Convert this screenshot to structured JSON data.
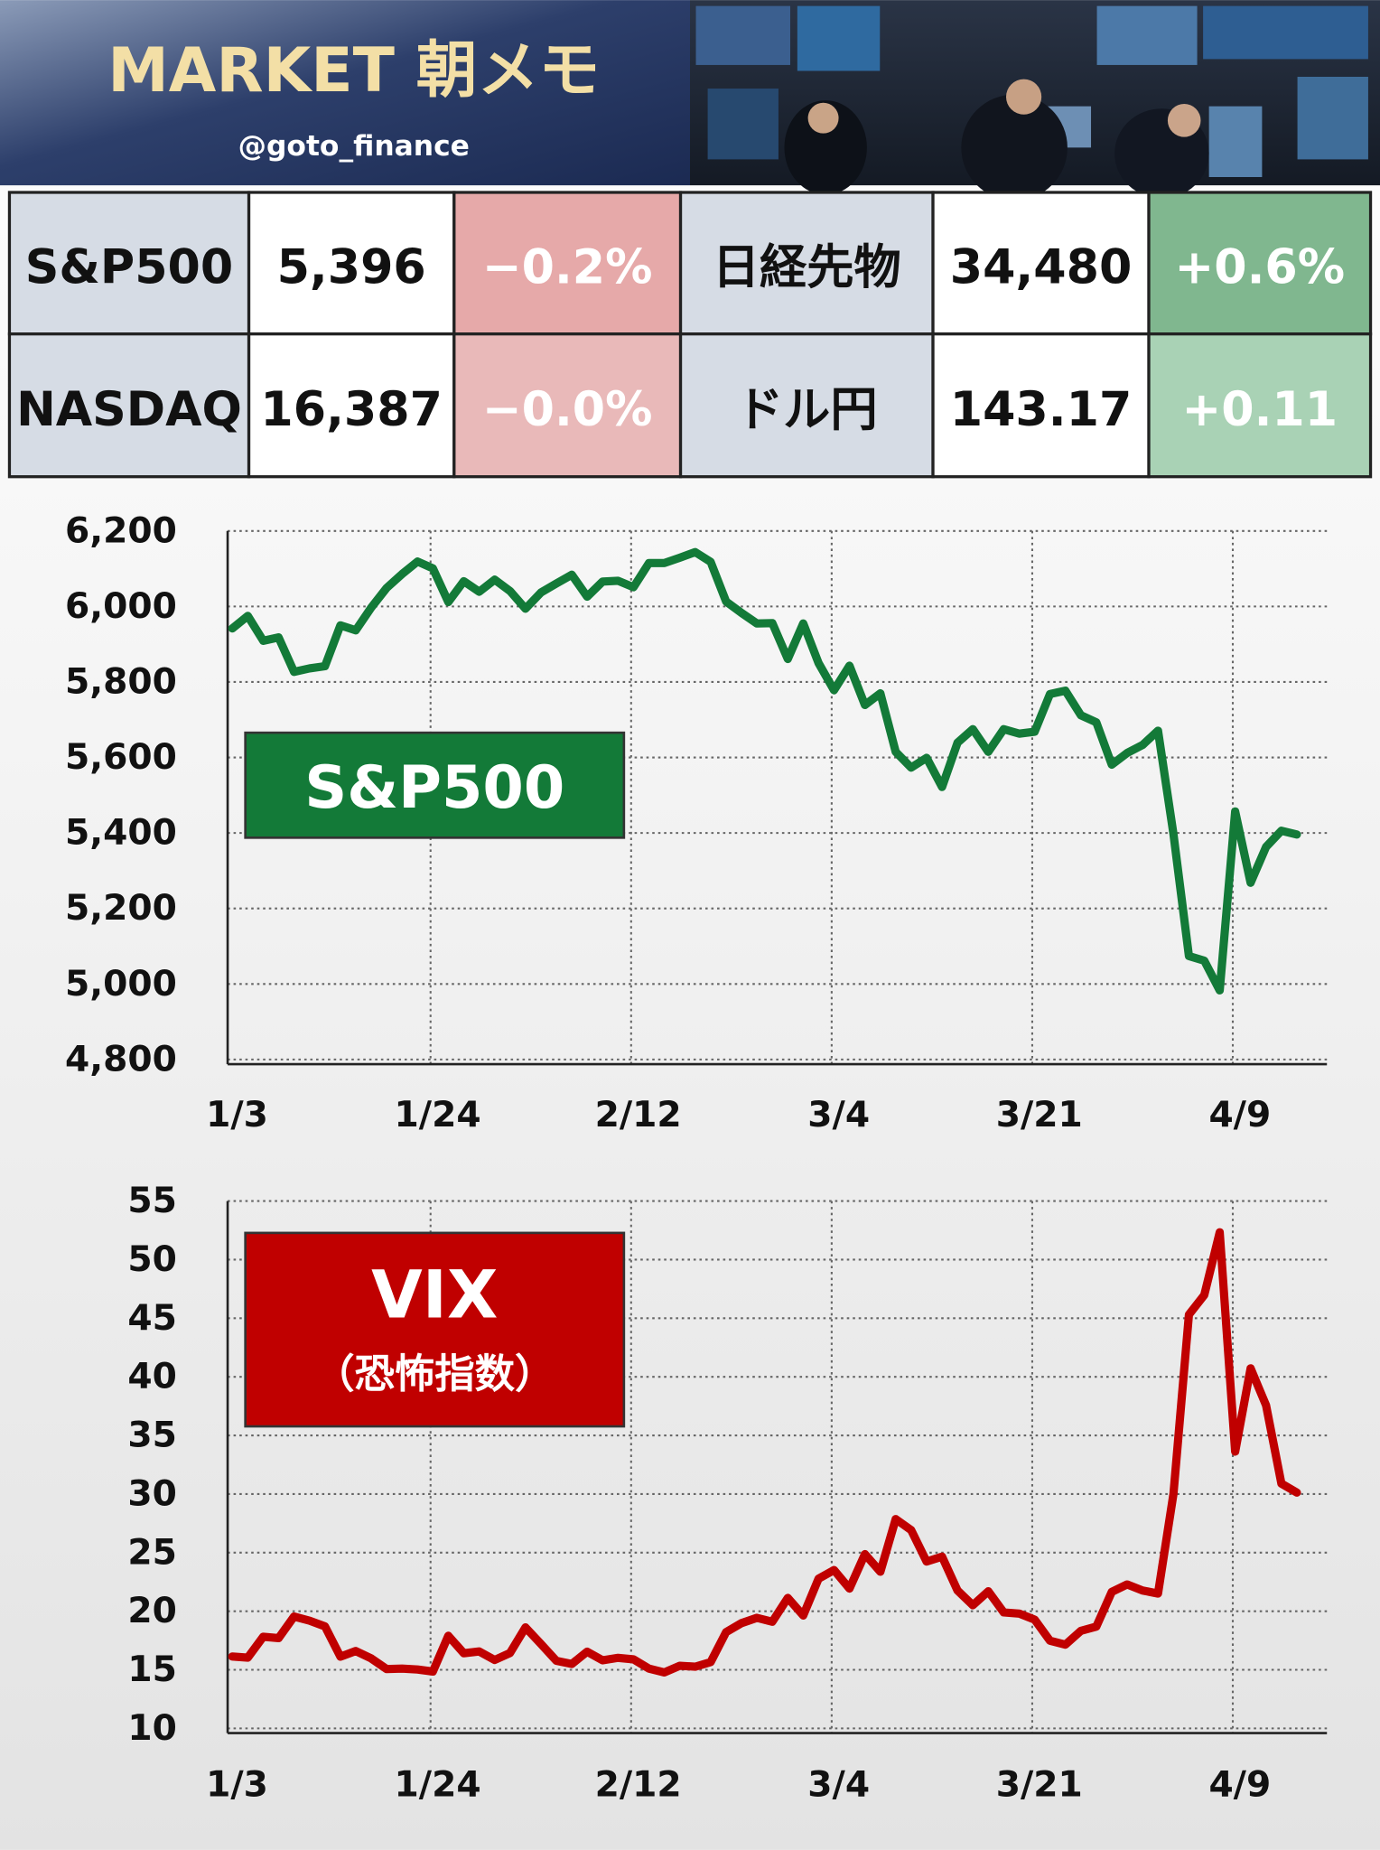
{
  "header": {
    "title": "MARKET 朝メモ",
    "handle": "@goto_finance"
  },
  "table": {
    "rows": [
      [
        "S&P500",
        "5,396",
        "−0.2%",
        "日経先物",
        "34,480",
        "+0.6%"
      ],
      [
        "NASDAQ",
        "16,387",
        "−0.0%",
        "ドル円",
        "143.17",
        "+0.11"
      ]
    ]
  },
  "chart_data": [
    {
      "type": "line",
      "categories": [
        "1/3",
        null,
        null,
        null,
        null,
        null,
        null,
        null,
        null,
        null,
        null,
        null,
        null,
        "1/24",
        null,
        null,
        null,
        null,
        null,
        null,
        null,
        null,
        null,
        null,
        null,
        null,
        "2/12",
        null,
        null,
        null,
        null,
        null,
        null,
        null,
        null,
        null,
        null,
        null,
        null,
        "3/4",
        null,
        null,
        null,
        null,
        null,
        null,
        null,
        null,
        null,
        null,
        null,
        null,
        "3/21",
        null,
        null,
        null,
        null,
        null,
        null,
        null,
        null,
        null,
        null,
        null,
        null,
        "4/9",
        null,
        null,
        null,
        null
      ],
      "series": [
        {
          "name": "S&P500",
          "color": "#137a38",
          "values": [
            5942,
            5975,
            5909,
            5918,
            5827,
            5836,
            5842,
            5950,
            5937,
            5997,
            6049,
            6086,
            6119,
            6101,
            6012,
            6067,
            6039,
            6071,
            6041,
            5994,
            6037,
            6061,
            6084,
            6026,
            6066,
            6068,
            6051,
            6115,
            6115,
            6129,
            6144,
            6118,
            6013,
            5983,
            5955,
            5956,
            5861,
            5955,
            5850,
            5778,
            5843,
            5739,
            5770,
            5615,
            5573,
            5599,
            5522,
            5639,
            5675,
            5615,
            5675,
            5663,
            5668,
            5768,
            5777,
            5712,
            5693,
            5581,
            5612,
            5633,
            5671,
            5397,
            5074,
            5062,
            4983,
            5457,
            5268,
            5363,
            5406,
            5396
          ]
        }
      ],
      "ylim": [
        4800,
        6200
      ],
      "yticks": [
        {
          "value": 4800,
          "label": "4,800"
        },
        {
          "value": 5000,
          "label": "5,000"
        },
        {
          "value": 5200,
          "label": "5,200"
        },
        {
          "value": 5400,
          "label": "5,400"
        },
        {
          "value": 5600,
          "label": "5,600"
        },
        {
          "value": 5800,
          "label": "5,800"
        },
        {
          "value": 6000,
          "label": "6,000"
        },
        {
          "value": 6200,
          "label": "6,200"
        }
      ],
      "grid": true
    },
    {
      "type": "line",
      "categories": [
        "1/3",
        null,
        null,
        null,
        null,
        null,
        null,
        null,
        null,
        null,
        null,
        null,
        null,
        "1/24",
        null,
        null,
        null,
        null,
        null,
        null,
        null,
        null,
        null,
        null,
        null,
        null,
        "2/12",
        null,
        null,
        null,
        null,
        null,
        null,
        null,
        null,
        null,
        null,
        null,
        null,
        "3/4",
        null,
        null,
        null,
        null,
        null,
        null,
        null,
        null,
        null,
        null,
        null,
        null,
        "3/21",
        null,
        null,
        null,
        null,
        null,
        null,
        null,
        null,
        null,
        null,
        null,
        null,
        "4/9",
        null,
        null,
        null,
        null
      ],
      "series": [
        {
          "name": "VIX",
          "subname": "（恐怖指数）",
          "color": "#c00000",
          "values": [
            16.13,
            16.04,
            17.82,
            17.7,
            19.54,
            19.19,
            18.71,
            16.12,
            16.6,
            15.97,
            15.06,
            15.1,
            15.02,
            14.85,
            17.9,
            16.41,
            16.56,
            15.84,
            16.43,
            18.62,
            17.21,
            15.77,
            15.5,
            16.54,
            15.81,
            16.02,
            15.89,
            15.1,
            14.77,
            15.35,
            15.27,
            15.66,
            18.21,
            18.98,
            19.43,
            19.1,
            21.13,
            19.63,
            22.78,
            23.51,
            21.93,
            24.87,
            23.37,
            27.86,
            26.92,
            24.23,
            24.66,
            21.77,
            20.51,
            21.7,
            19.9,
            19.8,
            19.28,
            17.48,
            17.15,
            18.33,
            18.69,
            21.65,
            22.28,
            21.77,
            21.51,
            30.02,
            45.31,
            46.98,
            52.33,
            33.62,
            40.72,
            37.56,
            30.89,
            30.12
          ]
        }
      ],
      "ylim": [
        10,
        55
      ],
      "yticks": [
        10,
        15,
        20,
        25,
        30,
        35,
        40,
        45,
        50,
        55
      ],
      "grid": true
    }
  ]
}
